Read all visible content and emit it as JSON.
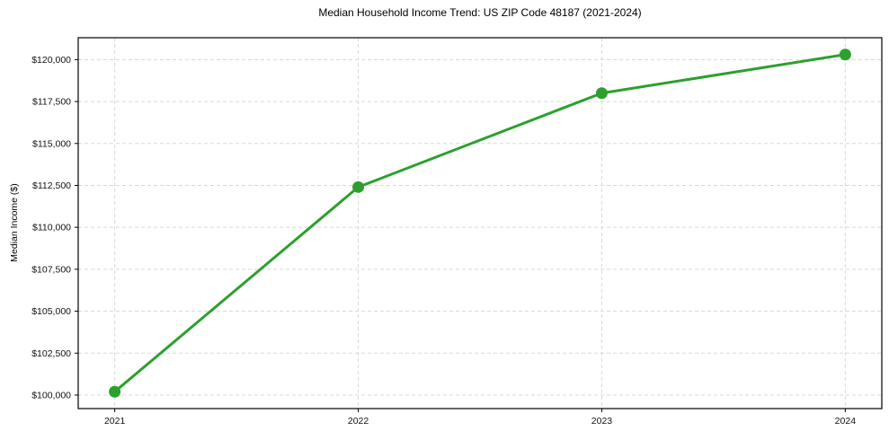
{
  "chart_data": {
    "type": "line",
    "title": "Median Household Income Trend: US ZIP Code 48187 (2021-2024)",
    "xlabel": "",
    "ylabel": "Median Income ($)",
    "x": [
      2021,
      2022,
      2023,
      2024
    ],
    "series": [
      {
        "name": "Median Household Income",
        "values": [
          100200,
          112400,
          118000,
          120300
        ]
      }
    ],
    "xticks": [
      2021,
      2022,
      2023,
      2024
    ],
    "xtick_labels": [
      "2021",
      "2022",
      "2023",
      "2024"
    ],
    "yticks": [
      100000,
      102500,
      105000,
      107500,
      110000,
      112500,
      115000,
      117500,
      120000
    ],
    "ytick_labels": [
      "$100,000",
      "$102,500",
      "$105,000",
      "$107,500",
      "$110,000",
      "$112,500",
      "$115,000",
      "$117,500",
      "$120,000"
    ],
    "xlim": [
      2020.85,
      2024.15
    ],
    "ylim": [
      99195,
      121305
    ],
    "grid": true,
    "legend": "none",
    "line_color": "#2ca02c",
    "grid_color": "#d8d8d8",
    "axis_color": "#000000",
    "tick_label_color": "#111111",
    "marker": "circle",
    "marker_radius": 6.5,
    "line_width": 3
  }
}
